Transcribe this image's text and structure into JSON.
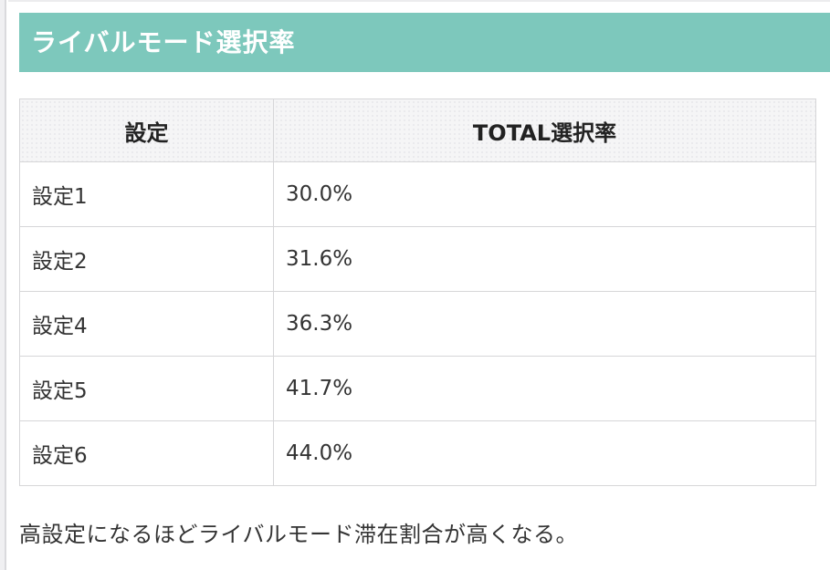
{
  "page": {
    "accent_color": "#7dc8bc",
    "title": "ライバルモード選択率",
    "note": "高設定になるほどライバルモード滞在割合が高くなる。"
  },
  "table": {
    "columns": {
      "setting": "設定",
      "total_rate": "TOTAL選択率"
    },
    "rows": [
      {
        "setting": "設定1",
        "rate": "30.0%"
      },
      {
        "setting": "設定2",
        "rate": "31.6%"
      },
      {
        "setting": "設定4",
        "rate": "36.3%"
      },
      {
        "setting": "設定5",
        "rate": "41.7%"
      },
      {
        "setting": "設定6",
        "rate": "44.0%"
      }
    ]
  },
  "chart_data": {
    "type": "table",
    "title": "ライバルモード選択率",
    "categories": [
      "設定1",
      "設定2",
      "設定4",
      "設定5",
      "設定6"
    ],
    "values": [
      30.0,
      31.6,
      36.3,
      41.7,
      44.0
    ],
    "value_unit": "%",
    "columns": [
      "設定",
      "TOTAL選択率"
    ],
    "annotation": "高設定になるほどライバルモード滞在割合が高くなる。"
  }
}
